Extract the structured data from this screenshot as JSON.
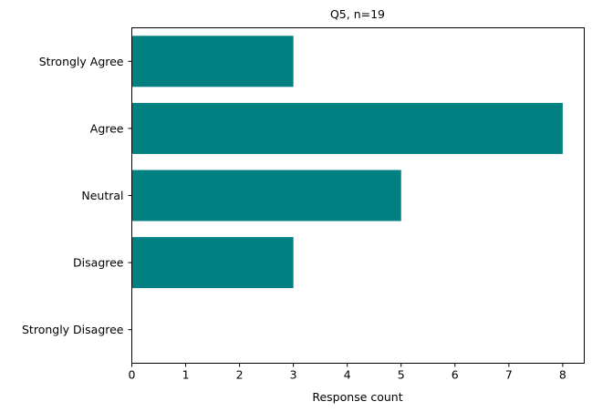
{
  "chart_data": {
    "type": "bar",
    "orientation": "horizontal",
    "title": "Q5, n=19",
    "xlabel": "Response count",
    "ylabel": "",
    "categories": [
      "Strongly Agree",
      "Agree",
      "Neutral",
      "Disagree",
      "Strongly Disagree"
    ],
    "values": [
      3,
      8,
      5,
      3,
      0
    ],
    "xlim": [
      0,
      8.4
    ],
    "xticks": [
      0,
      1,
      2,
      3,
      4,
      5,
      6,
      7,
      8
    ],
    "grid": false,
    "legend": "none",
    "bar_color": "#008080"
  }
}
